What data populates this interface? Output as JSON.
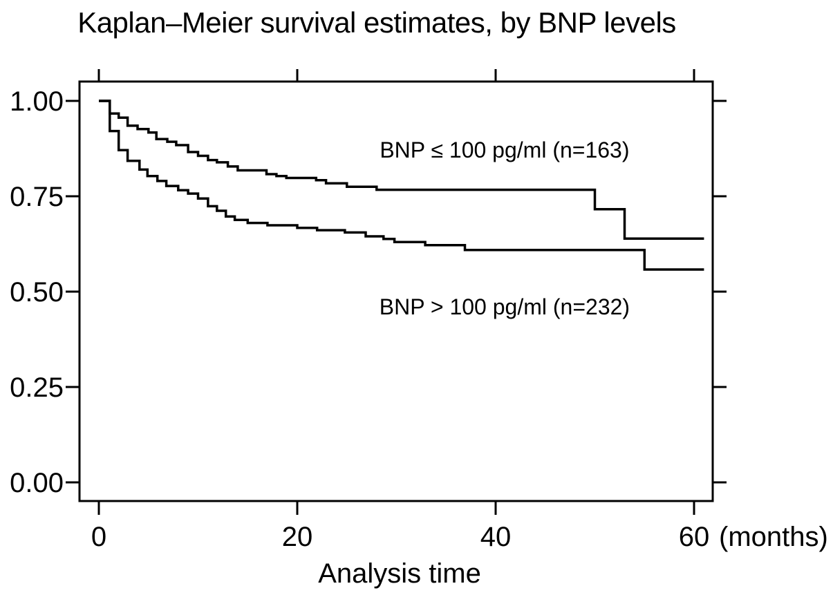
{
  "figure": {
    "background": "#ffffff",
    "axis_color": "#000000"
  },
  "chart_data": {
    "type": "line",
    "subtype": "kaplan-meier-step",
    "title": "Kaplan–Meier survival estimates, by BNP levels",
    "xlabel": "Analysis time",
    "x_unit_label": "(months)",
    "grid": false,
    "legend_position": "inline-annotations",
    "line_color": "#000000",
    "x_axis": {
      "min": 0,
      "max": 61,
      "ticks": [
        {
          "value": 0,
          "label": "0"
        },
        {
          "value": 20,
          "label": "20"
        },
        {
          "value": 40,
          "label": "40"
        },
        {
          "value": 60,
          "label": "60"
        }
      ]
    },
    "y_axis": {
      "min": 0.0,
      "max": 1.0,
      "ticks": [
        {
          "value": 1.0,
          "label": "1.00"
        },
        {
          "value": 0.75,
          "label": "0.75"
        },
        {
          "value": 0.5,
          "label": "0.50"
        },
        {
          "value": 0.25,
          "label": "0.25"
        },
        {
          "value": 0.0,
          "label": "0.00"
        }
      ]
    },
    "series": [
      {
        "name": "BNP <= 100 pg/ml",
        "label": "BNP ≤ 100 pg/ml (n=163)",
        "n": 163,
        "color": "#000000",
        "label_anchor": {
          "x": 40.9,
          "y": 0.851
        },
        "end_x": 61,
        "points": [
          [
            0,
            1.0
          ],
          [
            1.1,
            0.967
          ],
          [
            2,
            0.956
          ],
          [
            2.9,
            0.935
          ],
          [
            3.9,
            0.926
          ],
          [
            5,
            0.917
          ],
          [
            5.8,
            0.9
          ],
          [
            6.9,
            0.893
          ],
          [
            7.8,
            0.884
          ],
          [
            9,
            0.866
          ],
          [
            10,
            0.856
          ],
          [
            11,
            0.845
          ],
          [
            11.9,
            0.839
          ],
          [
            13,
            0.828
          ],
          [
            14,
            0.818
          ],
          [
            16.9,
            0.808
          ],
          [
            17.9,
            0.803
          ],
          [
            18.9,
            0.798
          ],
          [
            21.9,
            0.792
          ],
          [
            22.9,
            0.784
          ],
          [
            25,
            0.775
          ],
          [
            28,
            0.767
          ],
          [
            50,
            0.716
          ],
          [
            53,
            0.639
          ]
        ]
      },
      {
        "name": "BNP > 100 pg/ml",
        "label": "BNP > 100 pg/ml (n=232)",
        "n": 232,
        "color": "#000000",
        "label_anchor": {
          "x": 40.9,
          "y": 0.44
        },
        "end_x": 61,
        "points": [
          [
            0,
            1.0
          ],
          [
            1.1,
            0.921
          ],
          [
            2,
            0.871
          ],
          [
            2.9,
            0.843
          ],
          [
            4.1,
            0.82
          ],
          [
            4.9,
            0.803
          ],
          [
            5.9,
            0.79
          ],
          [
            6.8,
            0.777
          ],
          [
            8,
            0.766
          ],
          [
            9,
            0.757
          ],
          [
            10,
            0.744
          ],
          [
            11,
            0.724
          ],
          [
            11.9,
            0.712
          ],
          [
            12.8,
            0.697
          ],
          [
            13.7,
            0.688
          ],
          [
            15,
            0.68
          ],
          [
            17,
            0.674
          ],
          [
            20,
            0.667
          ],
          [
            22,
            0.661
          ],
          [
            24.8,
            0.655
          ],
          [
            26.9,
            0.645
          ],
          [
            28.7,
            0.638
          ],
          [
            29.8,
            0.63
          ],
          [
            32.9,
            0.622
          ],
          [
            36.9,
            0.609
          ],
          [
            55,
            0.558
          ]
        ]
      }
    ]
  }
}
